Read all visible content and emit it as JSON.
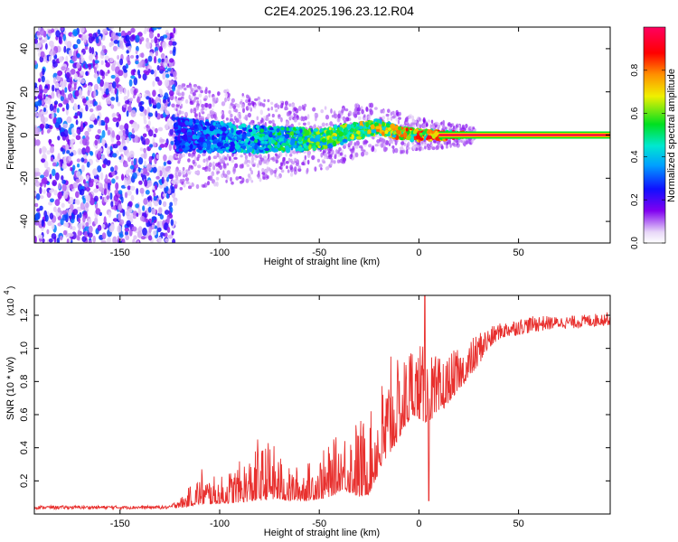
{
  "figure": {
    "title": "C2E4.2025.196.23.12.R04"
  },
  "chart_data": [
    {
      "type": "heatmap",
      "xlabel": "Height of straight line (km)",
      "ylabel": "Frequency (Hz)",
      "xlim": [
        -193,
        96
      ],
      "ylim": [
        -50,
        50
      ],
      "xticks": [
        -150,
        -100,
        -50,
        0,
        50
      ],
      "yticks": [
        -40,
        -20,
        0,
        20,
        40
      ],
      "colorbar": {
        "label": "Normalized spectral amplitude",
        "range": [
          0,
          1
        ],
        "ticks": [
          0.0,
          0.2,
          0.4,
          0.6,
          0.8
        ],
        "colormap": "rainbow (white-purple-blue-cyan-green-yellow-red-magenta)"
      },
      "regions": [
        {
          "description": "broadband noise",
          "x_range": [
            -193,
            -122
          ],
          "freq_range": [
            -50,
            50
          ],
          "amplitude_range": [
            0.05,
            0.35
          ]
        },
        {
          "description": "meteor signal band",
          "x_range": [
            -122,
            96
          ],
          "center_freq_hz": 0,
          "halfwidth_hz_start": 14,
          "halfwidth_hz_end": 1
        }
      ],
      "signal_centerline": [
        {
          "x": -120,
          "f": 0
        },
        {
          "x": -80,
          "f": -2
        },
        {
          "x": -50,
          "f": -2
        },
        {
          "x": -30,
          "f": 2
        },
        {
          "x": -20,
          "f": 4
        },
        {
          "x": -10,
          "f": 1
        },
        {
          "x": 0,
          "f": 0
        },
        {
          "x": 10,
          "f": 0
        },
        {
          "x": 96,
          "f": 0
        }
      ],
      "grid": false
    },
    {
      "type": "line",
      "xlabel": "Height of straight line (km)",
      "ylabel": "SNR (10 * v/v)",
      "yscale_label": "(x10",
      "yscale_exp": "4",
      "xlim": [
        -193,
        96
      ],
      "ylim": [
        0,
        1.32
      ],
      "xticks": [
        -150,
        -100,
        -50,
        0,
        50
      ],
      "yticks": [
        0.2,
        0.4,
        0.6,
        0.8,
        1.0,
        1.2
      ],
      "color": "#e8302e",
      "series": [
        {
          "envelope": [
            {
              "x": -193,
              "base": 0.03,
              "peak": 0.05
            },
            {
              "x": -125,
              "base": 0.03,
              "peak": 0.05
            },
            {
              "x": -118,
              "base": 0.04,
              "peak": 0.12
            },
            {
              "x": -110,
              "base": 0.06,
              "peak": 0.25
            },
            {
              "x": -100,
              "base": 0.06,
              "peak": 0.22
            },
            {
              "x": -90,
              "base": 0.07,
              "peak": 0.32
            },
            {
              "x": -80,
              "base": 0.08,
              "peak": 0.4
            },
            {
              "x": -75,
              "base": 0.09,
              "peak": 0.46
            },
            {
              "x": -65,
              "base": 0.08,
              "peak": 0.28
            },
            {
              "x": -55,
              "base": 0.08,
              "peak": 0.32
            },
            {
              "x": -45,
              "base": 0.1,
              "peak": 0.42
            },
            {
              "x": -38,
              "base": 0.15,
              "peak": 0.52
            },
            {
              "x": -30,
              "base": 0.1,
              "peak": 0.6
            },
            {
              "x": -25,
              "base": 0.12,
              "peak": 0.58
            },
            {
              "x": -20,
              "base": 0.25,
              "peak": 0.8
            },
            {
              "x": -15,
              "base": 0.35,
              "peak": 0.9
            },
            {
              "x": -8,
              "base": 0.5,
              "peak": 0.95
            },
            {
              "x": -3,
              "base": 0.6,
              "peak": 1.1
            },
            {
              "x": 3,
              "base": 0.55,
              "peak": 1.0
            },
            {
              "x": 10,
              "base": 0.6,
              "peak": 0.95
            },
            {
              "x": 20,
              "base": 0.75,
              "peak": 1.0
            },
            {
              "x": 30,
              "base": 0.9,
              "peak": 1.1
            },
            {
              "x": 40,
              "base": 1.05,
              "peak": 1.15
            },
            {
              "x": 50,
              "base": 1.08,
              "peak": 1.18
            },
            {
              "x": 60,
              "base": 1.1,
              "peak": 1.2
            },
            {
              "x": 70,
              "base": 1.12,
              "peak": 1.19
            },
            {
              "x": 80,
              "base": 1.12,
              "peak": 1.2
            },
            {
              "x": 96,
              "base": 1.14,
              "peak": 1.22
            }
          ],
          "spikes": [
            {
              "x": 3,
              "y": 1.32
            },
            {
              "x": 5,
              "y": 0.08
            },
            {
              "x": -14,
              "y": 0.95
            },
            {
              "x": -81,
              "y": 0.45
            },
            {
              "x": -109,
              "y": 0.27
            }
          ]
        }
      ],
      "grid": false
    }
  ]
}
